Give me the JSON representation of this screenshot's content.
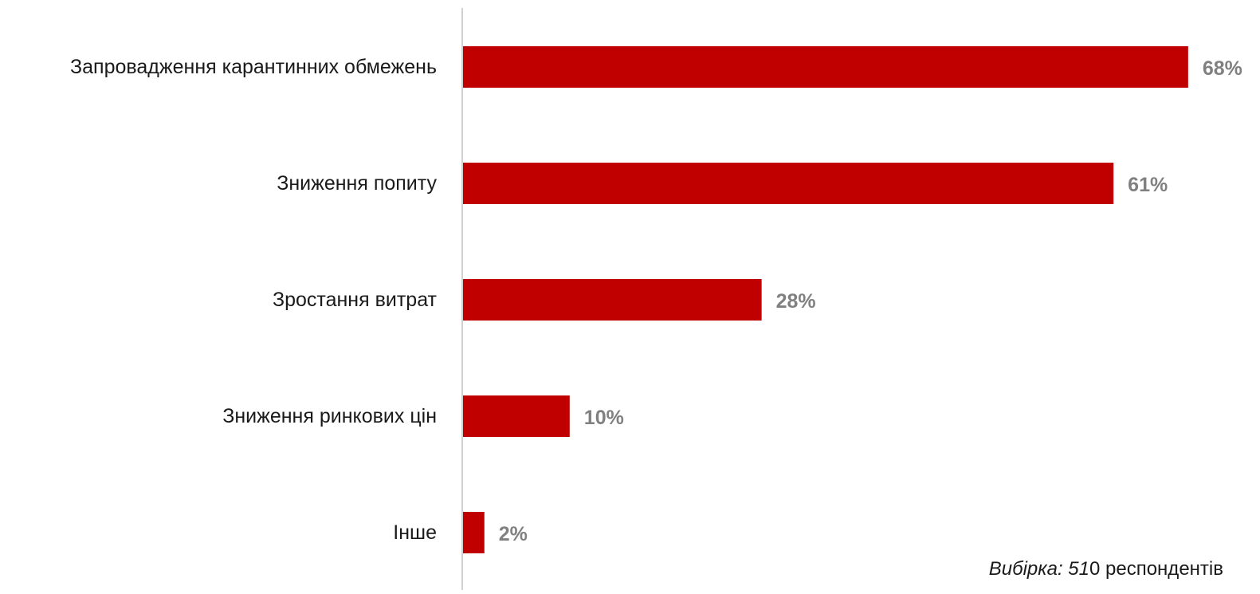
{
  "chart_data": {
    "type": "bar",
    "orientation": "horizontal",
    "categories": [
      "Запровадження карантинних обмежень",
      "Зниження попиту",
      "Зростання витрат",
      "Зниження ринкових цін",
      "Інше"
    ],
    "values": [
      68,
      61,
      28,
      10,
      2
    ],
    "value_labels": [
      "68%",
      "61%",
      "28%",
      "10%",
      "2%"
    ],
    "xlim": [
      0,
      100
    ],
    "grid": false,
    "bar_color": "#c00000",
    "value_label_color": "#808080"
  },
  "note": {
    "prefix": "Вибірка:",
    "number": "51",
    "suffix": "0 респондентів"
  }
}
